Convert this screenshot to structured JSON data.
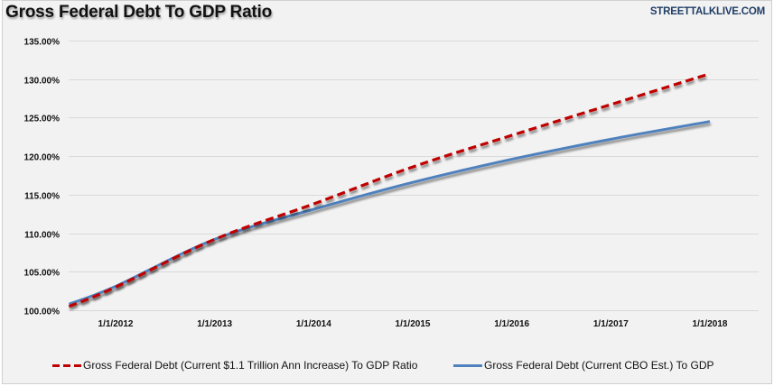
{
  "header": {
    "title": "Gross Federal Debt To GDP Ratio",
    "brand": "STREETTALKLIVE.COM"
  },
  "colors": {
    "background": "#f2f2f2",
    "gridline": "#d9d9d9",
    "series_red": "#c00000",
    "series_blue": "#4f81bd"
  },
  "chart_data": {
    "type": "line",
    "title": "Gross Federal Debt To GDP Ratio",
    "xlabel": "",
    "ylabel": "",
    "ylim": [
      100,
      135
    ],
    "yticks": [
      100,
      105,
      110,
      115,
      120,
      125,
      130,
      135
    ],
    "ytick_labels": [
      "100.00%",
      "105.00%",
      "110.00%",
      "115.00%",
      "120.00%",
      "125.00%",
      "130.00%",
      "135.00%"
    ],
    "xlim": [
      2011.53,
      2018.5
    ],
    "xticks": [
      2012,
      2013,
      2014,
      2015,
      2016,
      2017,
      2018
    ],
    "xtick_labels": [
      "1/1/2012",
      "1/1/2013",
      "1/1/2014",
      "1/1/2015",
      "1/1/2016",
      "1/1/2017",
      "1/1/2018"
    ],
    "grid": true,
    "legend_position": "bottom",
    "x": [
      2011.53,
      2012,
      2013,
      2014,
      2015,
      2016,
      2017,
      2018
    ],
    "series": [
      {
        "name": "Gross Federal Debt (Current $1.1 Trillion Ann Increase) To GDP Ratio",
        "style": "dashed",
        "color": "#c00000",
        "values": [
          100.5,
          103.0,
          109.2,
          113.8,
          118.6,
          122.7,
          126.7,
          130.7
        ]
      },
      {
        "name": "Gross Federal Debt (Current CBO Est.) To GDP",
        "style": "solid",
        "color": "#4f81bd",
        "values": [
          100.8,
          103.1,
          109.2,
          113.1,
          116.6,
          119.6,
          122.2,
          124.5
        ]
      }
    ]
  }
}
